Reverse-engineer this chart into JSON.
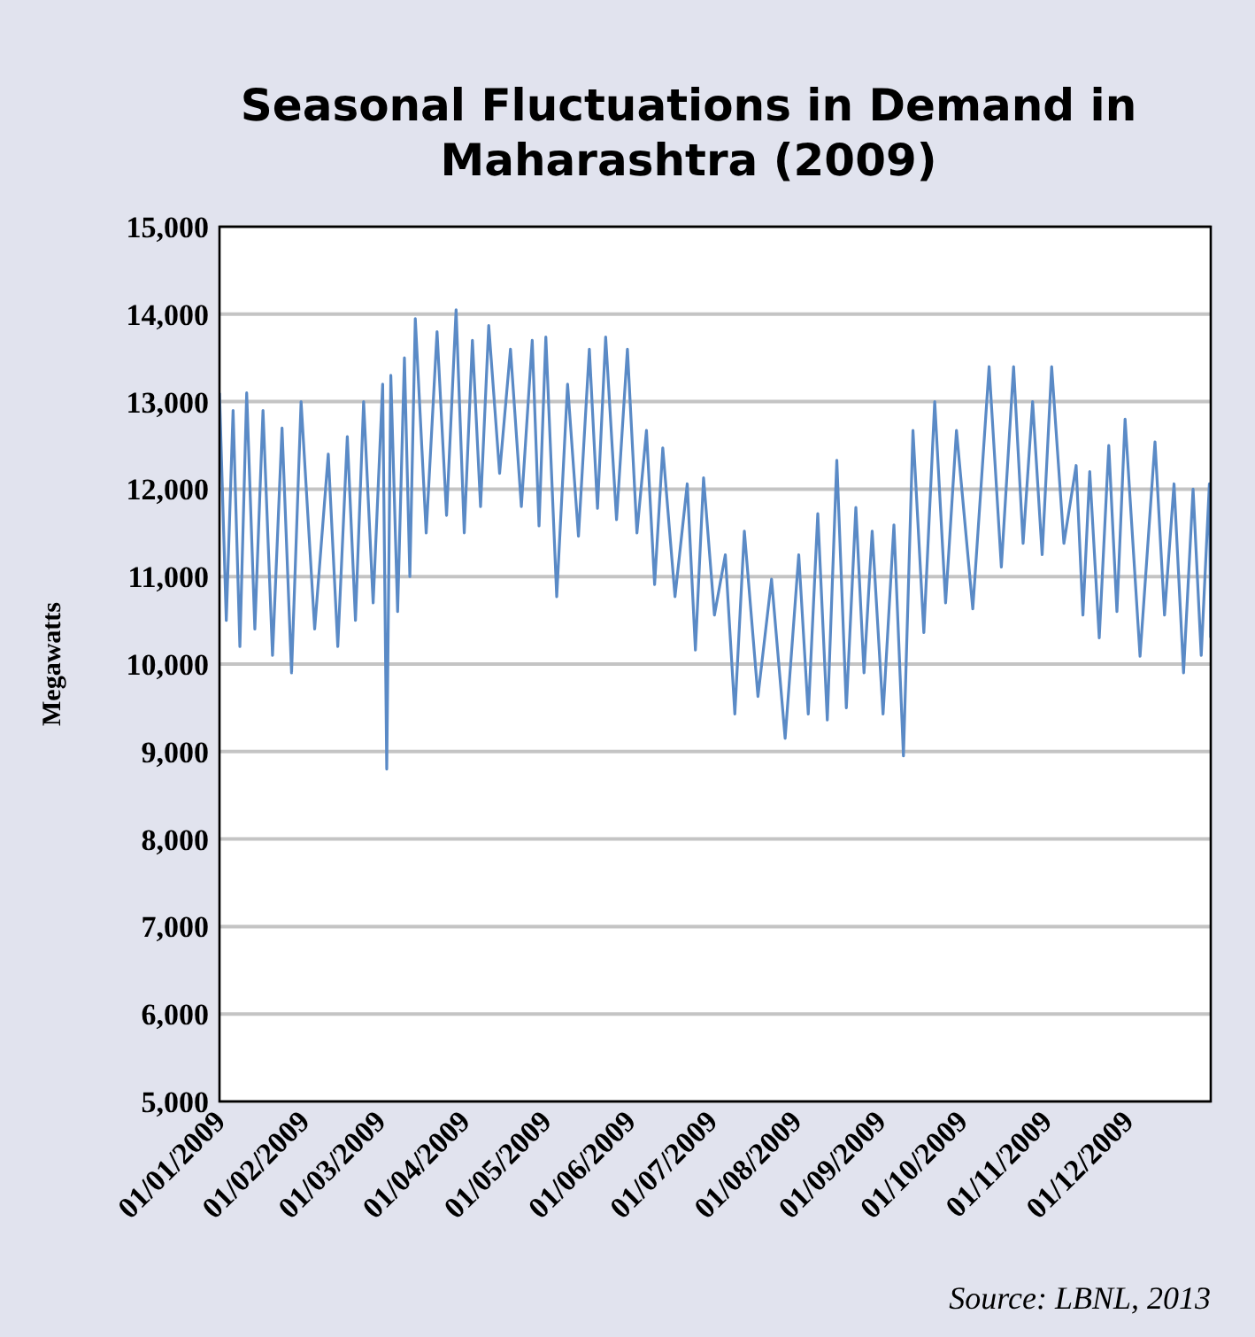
{
  "chart_data": {
    "type": "line",
    "title": "Seasonal Fluctuations in Demand in Maharashtra (2009)",
    "ylabel": "Megawatts",
    "annotations": [
      "Source: LBNL, 2013"
    ],
    "x": [
      "2009-01-01",
      "2009-01-03T12:00",
      "2009-01-06",
      "2009-01-08T12:00",
      "2009-01-11",
      "2009-01-14",
      "2009-01-17",
      "2009-01-20T12:00",
      "2009-01-24",
      "2009-01-27T12:00",
      "2009-01-31",
      "2009-02-05",
      "2009-02-10",
      "2009-02-13T12:00",
      "2009-02-17",
      "2009-02-20",
      "2009-02-23",
      "2009-02-26T12:00",
      "2009-03-02",
      "2009-03-03T12:00",
      "2009-03-05",
      "2009-03-07T12:00",
      "2009-03-10",
      "2009-03-12",
      "2009-03-14",
      "2009-03-18",
      "2009-03-22",
      "2009-03-25T12:00",
      "2009-03-29",
      "2009-04-01",
      "2009-04-04",
      "2009-04-07",
      "2009-04-10",
      "2009-04-14",
      "2009-04-18",
      "2009-04-22",
      "2009-04-26",
      "2009-04-28T12:00",
      "2009-05-01",
      "2009-05-05",
      "2009-05-09",
      "2009-05-13",
      "2009-05-17",
      "2009-05-20",
      "2009-05-23",
      "2009-05-27",
      "2009-05-31",
      "2009-06-03T12:00",
      "2009-06-07",
      "2009-06-10",
      "2009-06-13",
      "2009-06-17T12:00",
      "2009-06-22",
      "2009-06-25",
      "2009-06-28",
      "2009-07-02",
      "2009-07-06",
      "2009-07-09T12:00",
      "2009-07-13",
      "2009-07-18",
      "2009-07-23",
      "2009-07-28",
      "2009-08-02",
      "2009-08-05T12:00",
      "2009-08-09",
      "2009-08-12T12:00",
      "2009-08-16",
      "2009-08-19T12:00",
      "2009-08-23",
      "2009-08-26",
      "2009-08-29",
      "2009-09-02",
      "2009-09-06",
      "2009-09-09T12:00",
      "2009-09-13",
      "2009-09-17",
      "2009-09-21",
      "2009-09-25",
      "2009-09-29",
      "2009-10-05",
      "2009-10-11",
      "2009-10-15T12:00",
      "2009-10-20",
      "2009-10-23T12:00",
      "2009-10-27",
      "2009-10-30T12:00",
      "2009-11-03",
      "2009-11-07T12:00",
      "2009-11-12",
      "2009-11-14T12:00",
      "2009-11-17",
      "2009-11-20T12:00",
      "2009-11-24",
      "2009-11-27",
      "2009-11-30",
      "2009-12-05T12:00",
      "2009-12-11",
      "2009-12-14T12:00",
      "2009-12-18",
      "2009-12-21T12:00",
      "2009-12-25",
      "2009-12-28",
      "2009-12-31",
      "2009-12-31T12:00"
    ],
    "series": [
      {
        "color": "#5a8ac6",
        "values": [
          13100,
          10500,
          12900,
          10200,
          13100,
          10400,
          12900,
          10100,
          12700,
          9900,
          13000,
          10400,
          12400,
          10200,
          12600,
          10500,
          13000,
          10700,
          13200,
          8800,
          13300,
          10600,
          13500,
          11000,
          13950,
          11500,
          13800,
          11700,
          14050,
          11500,
          13700,
          11800,
          13870,
          12180,
          13600,
          11800,
          13700,
          11580,
          13740,
          10770,
          13200,
          11460,
          13600,
          11780,
          13740,
          11650,
          13600,
          11500,
          12670,
          10910,
          12470,
          10770,
          12060,
          10160,
          12130,
          10560,
          11250,
          9430,
          11520,
          9630,
          10970,
          9150,
          11250,
          9430,
          11720,
          9360,
          12330,
          9500,
          11790,
          9900,
          11520,
          9430,
          11590,
          8950,
          12670,
          10360,
          13000,
          10700,
          12670,
          10630,
          13400,
          11110,
          13400,
          11380,
          13000,
          11250,
          13400,
          11380,
          12270,
          10560,
          12200,
          10300,
          12500,
          10600,
          12800,
          10090,
          12540,
          10560,
          12060,
          9900,
          12000,
          10100,
          12060,
          10300
        ]
      }
    ],
    "xlim": [
      "2009-01-01",
      "2009-12-31T12:00"
    ],
    "xticks": [
      {
        "value": "2009-01-01",
        "label": "01/01/2009"
      },
      {
        "value": "2009-02-01",
        "label": "01/02/2009"
      },
      {
        "value": "2009-03-01",
        "label": "01/03/2009"
      },
      {
        "value": "2009-04-01",
        "label": "01/04/2009"
      },
      {
        "value": "2009-05-01",
        "label": "01/05/2009"
      },
      {
        "value": "2009-06-01",
        "label": "01/06/2009"
      },
      {
        "value": "2009-07-01",
        "label": "01/07/2009"
      },
      {
        "value": "2009-08-01",
        "label": "01/08/2009"
      },
      {
        "value": "2009-09-01",
        "label": "01/09/2009"
      },
      {
        "value": "2009-10-01",
        "label": "01/10/2009"
      },
      {
        "value": "2009-11-01",
        "label": "01/11/2009"
      },
      {
        "value": "2009-12-01",
        "label": "01/12/2009"
      }
    ],
    "ylim": [
      5000,
      15000
    ],
    "yticks": [
      {
        "value": 5000,
        "label": "5,000"
      },
      {
        "value": 6000,
        "label": "6,000"
      },
      {
        "value": 7000,
        "label": "7,000"
      },
      {
        "value": 8000,
        "label": "8,000"
      },
      {
        "value": 9000,
        "label": "9,000"
      },
      {
        "value": 10000,
        "label": "10,000"
      },
      {
        "value": 11000,
        "label": "11,000"
      },
      {
        "value": 12000,
        "label": "12,000"
      },
      {
        "value": 13000,
        "label": "13,000"
      },
      {
        "value": 14000,
        "label": "14,000"
      },
      {
        "value": 15000,
        "label": "15,000"
      }
    ],
    "grid": "y"
  }
}
